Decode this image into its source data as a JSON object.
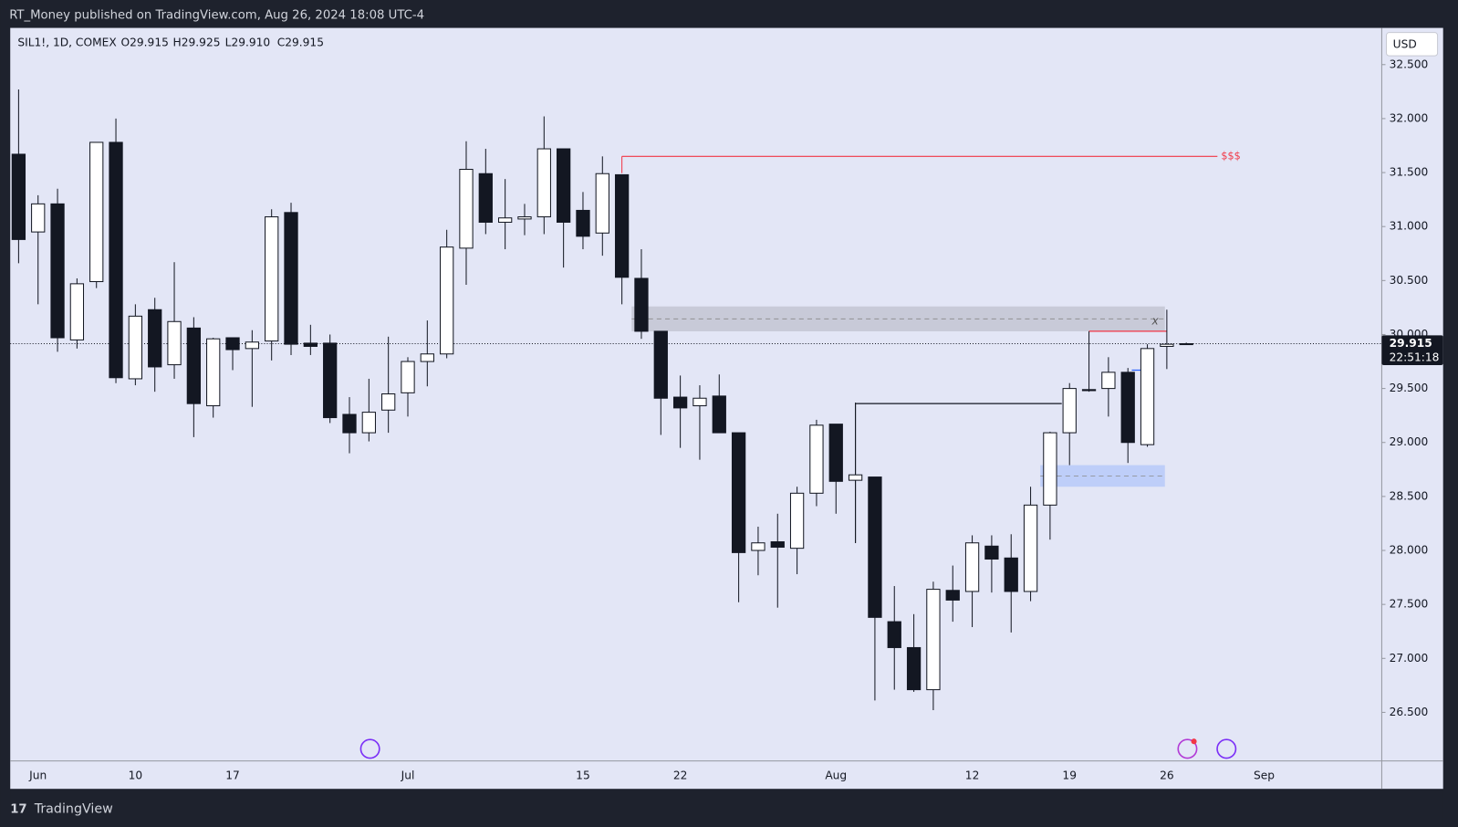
{
  "header": "RT_Money published on TradingView.com, Aug 26, 2024 18:08 UTC-4",
  "footer": "TradingView",
  "currency_button": "USD",
  "chart_data": {
    "type": "candlestick",
    "symbol": "SIL1!, 1D, COMEX",
    "ohlc_labels": [
      "O29.915",
      "H29.925",
      "L29.910",
      "C29.915"
    ],
    "categories": [
      null,
      "Jun",
      null,
      null,
      null,
      null,
      "10",
      null,
      null,
      null,
      null,
      "17",
      null,
      null,
      null,
      null,
      null,
      null,
      null,
      null,
      "Jul",
      null,
      null,
      null,
      null,
      null,
      null,
      null,
      null,
      "15",
      null,
      null,
      null,
      null,
      "22",
      null,
      null,
      null,
      null,
      null,
      null,
      null,
      "Aug",
      null,
      null,
      null,
      null,
      null,
      null,
      "12",
      null,
      null,
      null,
      null,
      "19",
      null,
      null,
      null,
      null,
      "26",
      null,
      null,
      null,
      null,
      "Sep"
    ],
    "open": [
      31.67,
      30.95,
      31.21,
      29.95,
      30.49,
      31.78,
      29.59,
      30.23,
      29.72,
      30.06,
      29.34,
      29.97,
      29.87,
      29.94,
      31.13,
      29.92,
      29.92,
      29.26,
      29.09,
      29.3,
      29.46,
      29.75,
      29.82,
      30.8,
      31.49,
      31.04,
      31.07,
      31.09,
      31.72,
      31.15,
      30.94,
      31.48,
      30.52,
      30.03,
      29.42,
      29.34,
      29.43,
      29.09,
      28.0,
      28.08,
      28.02,
      28.53,
      29.17,
      28.65,
      28.68,
      27.34,
      27.1,
      26.71,
      27.63,
      27.62,
      28.04,
      27.93,
      27.62,
      28.42,
      29.09,
      29.49,
      29.5,
      29.65,
      28.98,
      29.89,
      29.915,
      null,
      null,
      null,
      null
    ],
    "high": [
      32.27,
      31.29,
      31.35,
      30.52,
      31.78,
      32.0,
      30.28,
      30.34,
      30.67,
      30.16,
      29.97,
      29.97,
      30.04,
      31.16,
      31.22,
      30.09,
      30.0,
      29.42,
      29.59,
      29.98,
      29.79,
      30.13,
      30.97,
      31.79,
      31.72,
      31.44,
      31.21,
      32.02,
      31.72,
      31.32,
      31.65,
      31.48,
      30.79,
      30.03,
      29.62,
      29.53,
      29.63,
      29.09,
      28.22,
      28.34,
      28.59,
      29.21,
      29.17,
      29.37,
      28.68,
      27.67,
      27.41,
      27.71,
      27.86,
      28.14,
      28.14,
      28.15,
      28.59,
      29.1,
      29.55,
      30.03,
      29.79,
      29.69,
      29.91,
      30.23,
      29.925,
      null,
      null,
      null,
      null
    ],
    "low": [
      30.66,
      30.28,
      29.84,
      29.87,
      30.43,
      29.55,
      29.53,
      29.47,
      29.59,
      29.05,
      29.23,
      29.67,
      29.33,
      29.76,
      29.81,
      29.81,
      29.18,
      28.9,
      29.01,
      29.09,
      29.24,
      29.52,
      29.78,
      30.46,
      30.93,
      30.79,
      30.92,
      30.93,
      30.62,
      30.79,
      30.73,
      30.28,
      29.96,
      29.07,
      28.95,
      28.84,
      29.09,
      27.52,
      27.77,
      27.47,
      27.78,
      28.41,
      28.34,
      28.07,
      26.61,
      26.71,
      26.69,
      26.52,
      27.34,
      27.29,
      27.61,
      27.24,
      27.53,
      28.1,
      28.79,
      29.47,
      29.24,
      28.81,
      28.96,
      29.68,
      29.91,
      null,
      null,
      null,
      null
    ],
    "close": [
      30.88,
      31.21,
      29.97,
      30.47,
      31.78,
      29.6,
      30.17,
      29.7,
      30.12,
      29.36,
      29.96,
      29.86,
      29.93,
      31.09,
      29.91,
      29.89,
      29.23,
      29.09,
      29.28,
      29.45,
      29.75,
      29.82,
      30.81,
      31.53,
      31.04,
      31.08,
      31.09,
      31.72,
      31.04,
      30.91,
      31.49,
      30.53,
      30.03,
      29.41,
      29.32,
      29.41,
      29.09,
      27.98,
      28.07,
      28.03,
      28.53,
      29.16,
      28.64,
      28.7,
      27.38,
      27.1,
      26.71,
      27.64,
      27.54,
      28.07,
      27.92,
      27.62,
      28.42,
      29.09,
      29.5,
      29.48,
      29.65,
      29.0,
      29.87,
      29.91,
      29.915,
      null,
      null,
      null,
      null
    ],
    "up_color": "#ffffff",
    "down_color": "#131722",
    "ylim": [
      26.05,
      32.84
    ],
    "yticks": [
      {
        "value": 26.5,
        "label": "26.500"
      },
      {
        "value": 27,
        "label": "27.000"
      },
      {
        "value": 27.5,
        "label": "27.500"
      },
      {
        "value": 28,
        "label": "28.000"
      },
      {
        "value": 28.5,
        "label": "28.500"
      },
      {
        "value": 29,
        "label": "29.000"
      },
      {
        "value": 29.5,
        "label": "29.500"
      },
      {
        "value": 30,
        "label": "30.000"
      },
      {
        "value": 30.5,
        "label": "30.500"
      },
      {
        "value": 31,
        "label": "31.000"
      },
      {
        "value": 31.5,
        "label": "31.500"
      },
      {
        "value": 32,
        "label": "32.000"
      },
      {
        "value": 32.5,
        "label": "32.500"
      }
    ],
    "grid": false,
    "last_price": {
      "value": 29.915,
      "label": "29.915"
    },
    "countdown": "22:51:18",
    "zones": [
      {
        "top": 30.26,
        "bottom": 30.03,
        "color": "rgba(150,150,160,0.35)",
        "label": "x"
      },
      {
        "top": 28.79,
        "bottom": 28.59,
        "color": "rgba(120,160,255,0.35)"
      }
    ],
    "levels": [
      {
        "price": 31.65,
        "color": "#f23645",
        "label": "$$$"
      },
      {
        "price": 29.36,
        "color": "#131722"
      },
      {
        "price": 30.03,
        "color": "#f23645"
      },
      {
        "price": 29.67,
        "color": "#2962ff"
      }
    ]
  }
}
